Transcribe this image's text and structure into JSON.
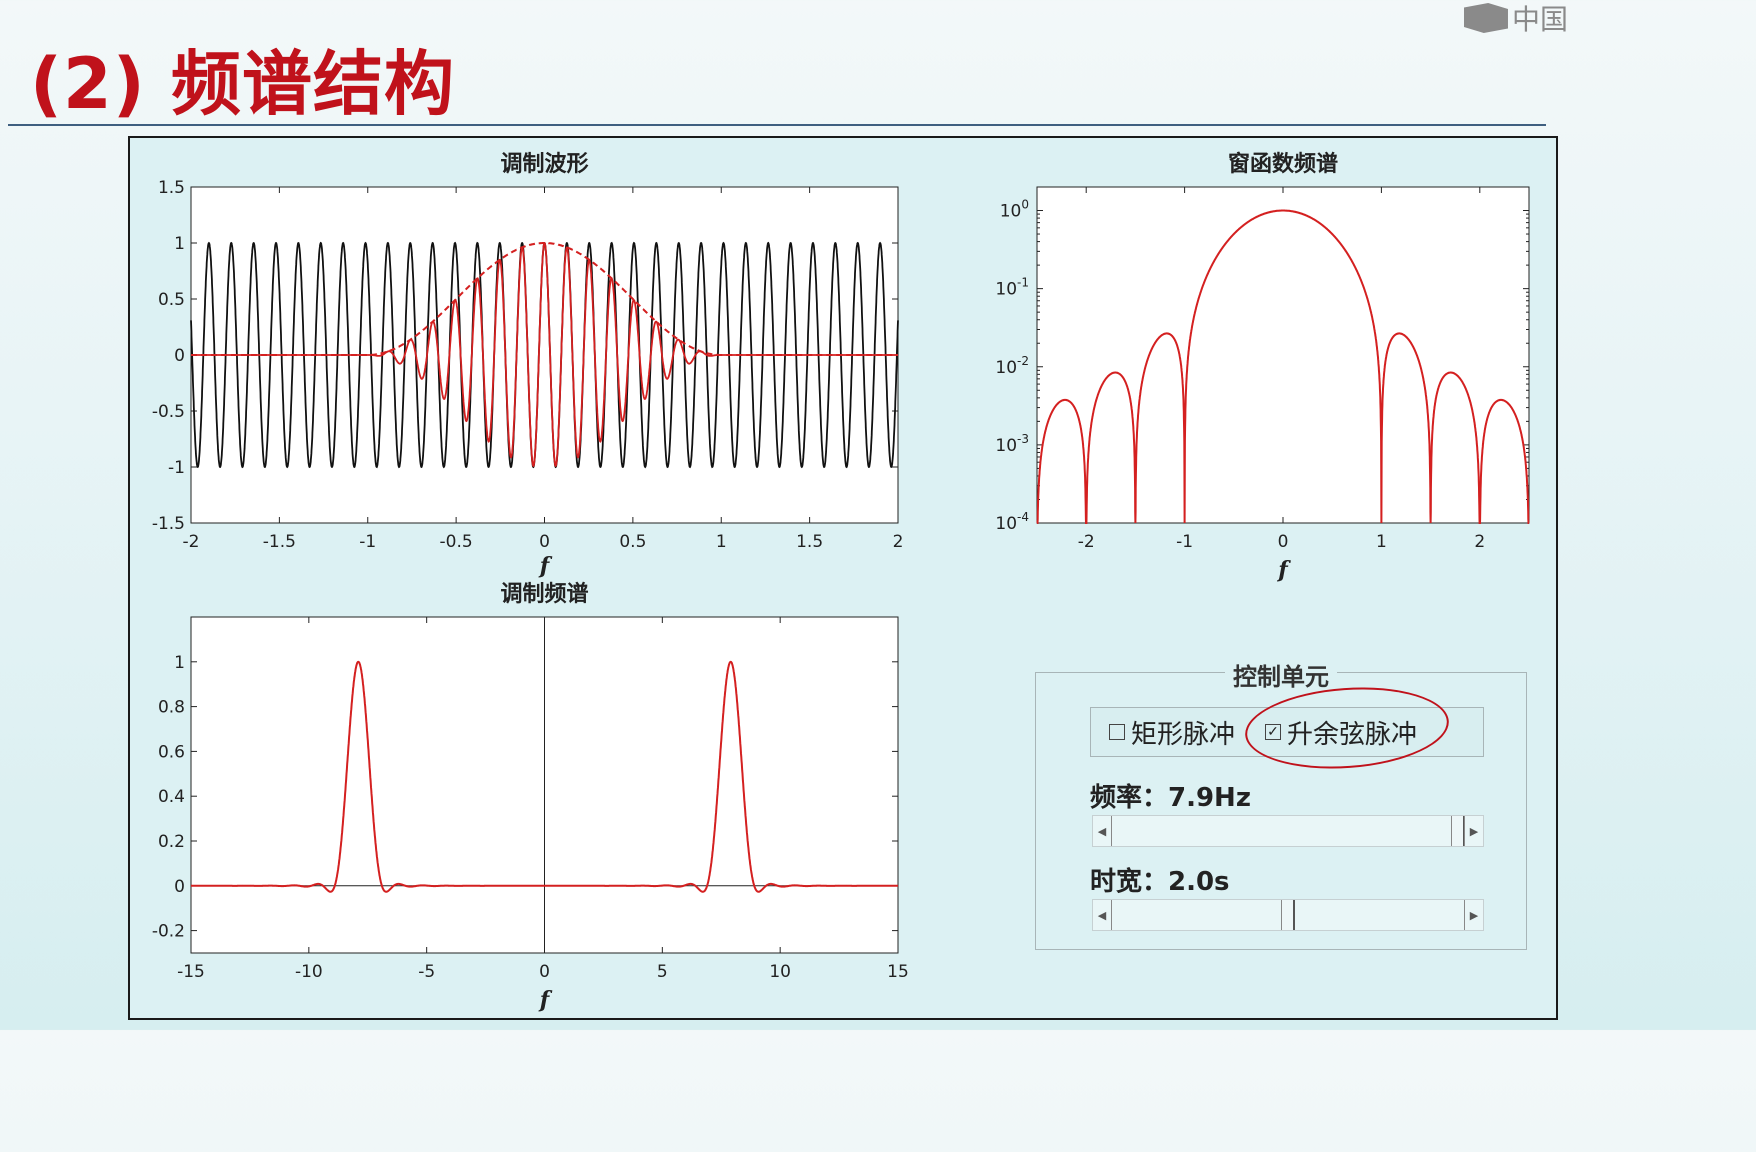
{
  "slide": {
    "title": "(2) 频谱结构",
    "logo_text": "中国"
  },
  "controls": {
    "title": "控制单元",
    "rect_pulse": {
      "label": "矩形脉冲",
      "checked": false
    },
    "cos_pulse": {
      "label": "升余弦脉冲",
      "checked": true
    },
    "freq_label": "频率：7.9Hz",
    "freq_slider": {
      "min": 0,
      "max": 1,
      "value": 1.0
    },
    "width_label": "时宽：2.0s",
    "width_slider": {
      "min": 0,
      "max": 1,
      "value": 0.5
    }
  },
  "chart_data": [
    {
      "type": "line",
      "title": "调制波形",
      "xlabel": "f",
      "xlim": [
        -2,
        2
      ],
      "ylim": [
        -1.5,
        1.5
      ],
      "xticks": [
        -2,
        -1.5,
        -1,
        -0.5,
        0,
        0.5,
        1,
        1.5,
        2
      ],
      "xtick_labels": [
        "-2",
        "-1.5",
        "-1",
        "-0.5",
        "0",
        "0.5",
        "1",
        "1.5",
        "2"
      ],
      "yticks": [
        1.5,
        1,
        0.5,
        0,
        -0.5,
        -1,
        -1.5
      ],
      "ytick_labels": [
        "1.5",
        "1",
        "0.5",
        "0",
        "-0.5",
        "-1",
        "-1.5"
      ],
      "carrier_frequency": 7.9,
      "pulse_width": 2.0,
      "series": [
        {
          "style": "carrier",
          "color": "#111111"
        },
        {
          "style": "modulated",
          "color": "#d42020"
        },
        {
          "style": "envelope",
          "color": "#d42020",
          "dashed": true
        }
      ]
    },
    {
      "type": "line",
      "title": "窗函数频谱",
      "xlabel": "f",
      "xlim": [
        -2.5,
        2.5
      ],
      "ylim": [
        0.0001,
        2
      ],
      "yscale": "log",
      "xticks": [
        -2,
        -1,
        0,
        1,
        2
      ],
      "xtick_labels": [
        "-2",
        "-1",
        "0",
        "1",
        "2"
      ],
      "yticks": [
        1,
        0.1,
        0.01,
        0.001,
        0.0001
      ],
      "ytick_labels": [
        "10^0",
        "10^-1",
        "10^-2",
        "10^-3",
        "10^-4"
      ],
      "series": [
        {
          "color": "#d42020"
        }
      ]
    },
    {
      "type": "line",
      "title": "调制频谱",
      "xlabel": "f",
      "xlim": [
        -15,
        15
      ],
      "ylim": [
        -0.3,
        1.2
      ],
      "xticks": [
        -15,
        -10,
        -5,
        0,
        5,
        10,
        15
      ],
      "xtick_labels": [
        "-15",
        "-10",
        "-5",
        "0",
        "5",
        "10",
        "15"
      ],
      "yticks": [
        1,
        0.8,
        0.6,
        0.4,
        0.2,
        0,
        -0.2
      ],
      "ytick_labels": [
        "1",
        "0.8",
        "0.6",
        "0.4",
        "0.2",
        "0",
        "-0.2"
      ],
      "series": [
        {
          "color": "#d42020"
        }
      ]
    }
  ]
}
